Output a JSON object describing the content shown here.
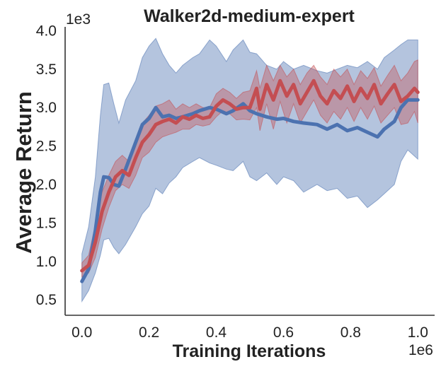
{
  "chart_data": {
    "type": "line",
    "title": "Walker2d-medium-expert",
    "xlabel": "Training Iterations",
    "ylabel": "Average Return",
    "x_exponent_label": "1e6",
    "y_exponent_label": "1e3",
    "xlim": [
      -0.05,
      1.05
    ],
    "ylim": [
      0.3,
      4.05
    ],
    "x_ticks": [
      0.0,
      0.2,
      0.4,
      0.6,
      0.8,
      1.0
    ],
    "x_tick_labels": [
      "0.0",
      "0.2",
      "0.4",
      "0.6",
      "0.8",
      "1.0"
    ],
    "y_ticks": [
      0.5,
      1.0,
      1.5,
      2.0,
      2.5,
      3.0,
      3.5,
      4.0
    ],
    "y_tick_labels": [
      "0.5",
      "1.0",
      "1.5",
      "2.0",
      "2.5",
      "3.0",
      "3.5",
      "4.0"
    ],
    "grid": false,
    "legend": "none",
    "series": [
      {
        "color": "#4c72b0",
        "band_color": "#4c72b0",
        "x": [
          0.0,
          0.02,
          0.04,
          0.055,
          0.065,
          0.08,
          0.095,
          0.11,
          0.13,
          0.16,
          0.18,
          0.2,
          0.22,
          0.24,
          0.26,
          0.28,
          0.3,
          0.33,
          0.35,
          0.38,
          0.4,
          0.43,
          0.45,
          0.48,
          0.5,
          0.52,
          0.55,
          0.58,
          0.6,
          0.63,
          0.66,
          0.7,
          0.73,
          0.76,
          0.79,
          0.82,
          0.85,
          0.88,
          0.9,
          0.93,
          0.95,
          0.97,
          1.0
        ],
        "y": [
          0.74,
          0.9,
          1.4,
          1.9,
          2.1,
          2.09,
          2.0,
          1.98,
          2.2,
          2.55,
          2.78,
          2.86,
          3.0,
          2.88,
          2.9,
          2.86,
          2.88,
          2.92,
          2.96,
          3.0,
          2.98,
          2.92,
          2.96,
          3.05,
          2.96,
          2.92,
          2.88,
          2.85,
          2.86,
          2.82,
          2.8,
          2.78,
          2.72,
          2.78,
          2.7,
          2.74,
          2.68,
          2.62,
          2.72,
          2.82,
          3.0,
          3.1,
          3.1
        ],
        "lower": [
          0.48,
          0.62,
          0.85,
          1.08,
          1.28,
          1.3,
          1.18,
          1.1,
          1.22,
          1.45,
          1.62,
          1.72,
          1.95,
          1.88,
          2.02,
          2.1,
          2.22,
          2.3,
          2.35,
          2.28,
          2.25,
          2.2,
          2.18,
          2.3,
          2.1,
          2.05,
          2.15,
          2.0,
          2.1,
          2.05,
          1.9,
          2.0,
          1.92,
          1.95,
          1.82,
          1.85,
          1.7,
          1.8,
          1.88,
          2.0,
          2.3,
          2.45,
          2.33
        ],
        "upper": [
          1.1,
          1.45,
          2.1,
          2.9,
          3.3,
          3.32,
          3.05,
          2.8,
          3.1,
          3.35,
          3.65,
          3.8,
          3.9,
          3.7,
          3.55,
          3.45,
          3.55,
          3.65,
          3.7,
          3.88,
          3.8,
          3.6,
          3.75,
          3.88,
          3.72,
          3.7,
          3.55,
          3.5,
          3.6,
          3.5,
          3.55,
          3.48,
          3.45,
          3.5,
          3.55,
          3.52,
          3.6,
          3.5,
          3.65,
          3.75,
          3.82,
          3.88,
          3.88
        ]
      },
      {
        "color": "#c44e52",
        "band_color": "#c44e52",
        "x": [
          0.0,
          0.02,
          0.04,
          0.06,
          0.08,
          0.1,
          0.12,
          0.14,
          0.16,
          0.18,
          0.2,
          0.22,
          0.24,
          0.26,
          0.28,
          0.3,
          0.32,
          0.34,
          0.36,
          0.38,
          0.4,
          0.42,
          0.44,
          0.46,
          0.48,
          0.5,
          0.52,
          0.53,
          0.55,
          0.57,
          0.59,
          0.61,
          0.63,
          0.65,
          0.67,
          0.69,
          0.71,
          0.73,
          0.75,
          0.77,
          0.79,
          0.81,
          0.83,
          0.85,
          0.87,
          0.89,
          0.91,
          0.93,
          0.95,
          0.97,
          0.99,
          1.0
        ],
        "y": [
          0.88,
          0.95,
          1.25,
          1.65,
          1.9,
          2.1,
          2.18,
          2.12,
          2.35,
          2.55,
          2.65,
          2.78,
          2.82,
          2.85,
          2.8,
          2.88,
          2.85,
          2.9,
          2.86,
          2.88,
          3.02,
          3.1,
          3.05,
          2.98,
          3.0,
          3.0,
          3.25,
          2.98,
          3.3,
          3.1,
          3.35,
          3.15,
          3.3,
          3.05,
          3.2,
          3.35,
          3.15,
          3.05,
          3.22,
          3.12,
          3.28,
          3.08,
          3.25,
          3.12,
          3.3,
          3.05,
          3.18,
          3.3,
          3.08,
          3.15,
          3.25,
          3.2
        ],
        "lower": [
          0.8,
          0.85,
          1.05,
          1.42,
          1.7,
          1.92,
          2.0,
          1.95,
          2.12,
          2.35,
          2.42,
          2.55,
          2.62,
          2.65,
          2.68,
          2.72,
          2.72,
          2.78,
          2.76,
          2.78,
          2.88,
          2.96,
          2.92,
          2.84,
          2.85,
          2.84,
          3.0,
          2.7,
          3.05,
          2.72,
          3.08,
          2.8,
          3.05,
          2.8,
          2.95,
          3.1,
          2.9,
          2.8,
          2.95,
          2.85,
          3.0,
          2.82,
          3.0,
          2.85,
          3.02,
          2.8,
          2.9,
          3.0,
          2.78,
          2.8,
          2.95,
          2.8
        ],
        "upper": [
          0.98,
          1.08,
          1.48,
          1.9,
          2.12,
          2.3,
          2.38,
          2.3,
          2.58,
          2.8,
          2.9,
          3.02,
          3.05,
          3.1,
          2.98,
          3.05,
          3.0,
          3.05,
          3.0,
          3.0,
          3.18,
          3.25,
          3.2,
          3.12,
          3.2,
          3.22,
          3.48,
          3.25,
          3.55,
          3.35,
          3.55,
          3.4,
          3.5,
          3.3,
          3.45,
          3.55,
          3.4,
          3.3,
          3.5,
          3.4,
          3.5,
          3.3,
          3.48,
          3.38,
          3.52,
          3.28,
          3.42,
          3.55,
          3.35,
          3.45,
          3.6,
          3.62
        ]
      }
    ]
  }
}
